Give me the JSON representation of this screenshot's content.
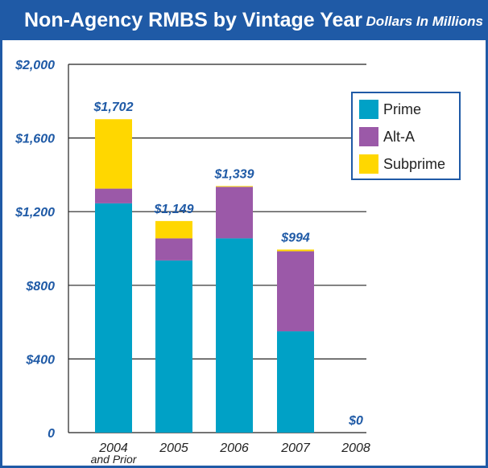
{
  "header": {
    "title": "Non-Agency RMBS by Vintage Year",
    "subtitle": "Dollars In Millions"
  },
  "colors": {
    "prime": "#00a1c6",
    "alt_a": "#9b59a8",
    "subprime": "#ffd700",
    "accent": "#1f5aa6"
  },
  "chart_data": {
    "type": "bar",
    "stacked": true,
    "categories": [
      [
        "2004",
        "and Prior"
      ],
      [
        "2005"
      ],
      [
        "2006"
      ],
      [
        "2007"
      ],
      [
        "2008"
      ]
    ],
    "series": [
      {
        "name": "Prime",
        "color": "#00a1c6",
        "values": [
          1245,
          935,
          1055,
          550,
          0
        ]
      },
      {
        "name": "Alt-A",
        "color": "#9b59a8",
        "values": [
          80,
          120,
          280,
          435,
          0
        ]
      },
      {
        "name": "Subprime",
        "color": "#ffd700",
        "values": [
          377,
          94,
          4,
          9,
          0
        ]
      }
    ],
    "totals": [
      "$1,702",
      "$1,149",
      "$1,339",
      "$994",
      "$0"
    ],
    "yticks": [
      {
        "value": 0,
        "label": "0"
      },
      {
        "value": 400,
        "label": "$400"
      },
      {
        "value": 800,
        "label": "$800"
      },
      {
        "value": 1200,
        "label": "$1,200"
      },
      {
        "value": 1600,
        "label": "$1,600"
      },
      {
        "value": 2000,
        "label": "$2,000"
      }
    ],
    "ylim": [
      0,
      2000
    ],
    "grid": true,
    "legend_position": "top-right"
  }
}
